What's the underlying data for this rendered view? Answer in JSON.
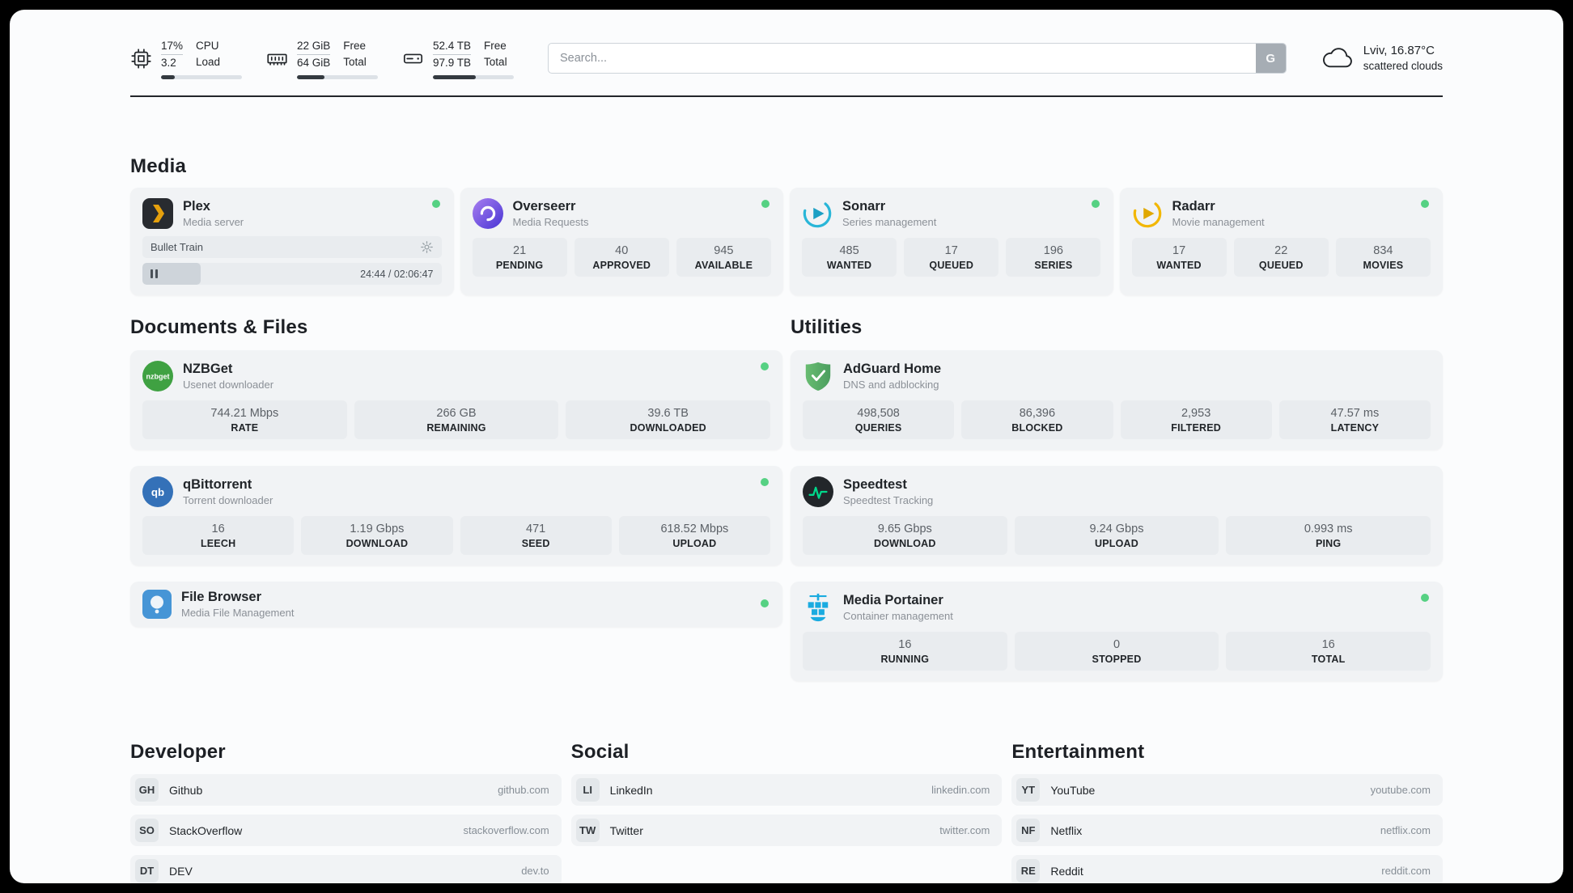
{
  "colors": {
    "status_online": "#56d183"
  },
  "header": {
    "cpu": {
      "value1": "17%",
      "value2": "3.2",
      "label1": "CPU",
      "label2": "Load",
      "percent": 17
    },
    "ram": {
      "value1": "22 GiB",
      "value2": "64 GiB",
      "label1": "Free",
      "label2": "Total",
      "percent": 34
    },
    "disk": {
      "value1": "52.4 TB",
      "value2": "97.9 TB",
      "label1": "Free",
      "label2": "Total",
      "percent": 53
    },
    "search": {
      "placeholder": "Search...",
      "engine_label": "G"
    },
    "weather": {
      "location": "Lviv, 16.87°C",
      "condition": "scattered clouds"
    }
  },
  "sections": {
    "media": {
      "title": "Media",
      "plex": {
        "name": "Plex",
        "subtitle": "Media server",
        "now_playing": "Bullet Train",
        "time": "24:44 / 02:06:47",
        "progress_percent": 19.5
      },
      "overseerr": {
        "name": "Overseerr",
        "subtitle": "Media Requests",
        "stats": [
          {
            "value": "21",
            "label": "PENDING"
          },
          {
            "value": "40",
            "label": "APPROVED"
          },
          {
            "value": "945",
            "label": "AVAILABLE"
          }
        ]
      },
      "sonarr": {
        "name": "Sonarr",
        "subtitle": "Series management",
        "stats": [
          {
            "value": "485",
            "label": "WANTED"
          },
          {
            "value": "17",
            "label": "QUEUED"
          },
          {
            "value": "196",
            "label": "SERIES"
          }
        ]
      },
      "radarr": {
        "name": "Radarr",
        "subtitle": "Movie management",
        "stats": [
          {
            "value": "17",
            "label": "WANTED"
          },
          {
            "value": "22",
            "label": "QUEUED"
          },
          {
            "value": "834",
            "label": "MOVIES"
          }
        ]
      }
    },
    "documents": {
      "title": "Documents & Files",
      "nzbget": {
        "name": "NZBGet",
        "subtitle": "Usenet downloader",
        "stats": [
          {
            "value": "744.21 Mbps",
            "label": "RATE"
          },
          {
            "value": "266 GB",
            "label": "REMAINING"
          },
          {
            "value": "39.6 TB",
            "label": "DOWNLOADED"
          }
        ]
      },
      "qbittorrent": {
        "name": "qBittorrent",
        "subtitle": "Torrent downloader",
        "stats": [
          {
            "value": "16",
            "label": "LEECH"
          },
          {
            "value": "1.19 Gbps",
            "label": "DOWNLOAD"
          },
          {
            "value": "471",
            "label": "SEED"
          },
          {
            "value": "618.52 Mbps",
            "label": "UPLOAD"
          }
        ]
      },
      "filebrowser": {
        "name": "File Browser",
        "subtitle": "Media File Management"
      }
    },
    "utilities": {
      "title": "Utilities",
      "adguard": {
        "name": "AdGuard Home",
        "subtitle": "DNS and adblocking",
        "stats": [
          {
            "value": "498,508",
            "label": "QUERIES"
          },
          {
            "value": "86,396",
            "label": "BLOCKED"
          },
          {
            "value": "2,953",
            "label": "FILTERED"
          },
          {
            "value": "47.57 ms",
            "label": "LATENCY"
          }
        ]
      },
      "speedtest": {
        "name": "Speedtest",
        "subtitle": "Speedtest Tracking",
        "stats": [
          {
            "value": "9.65 Gbps",
            "label": "DOWNLOAD"
          },
          {
            "value": "9.24 Gbps",
            "label": "UPLOAD"
          },
          {
            "value": "0.993 ms",
            "label": "PING"
          }
        ]
      },
      "portainer": {
        "name": "Media Portainer",
        "subtitle": "Container management",
        "stats": [
          {
            "value": "16",
            "label": "RUNNING"
          },
          {
            "value": "0",
            "label": "STOPPED"
          },
          {
            "value": "16",
            "label": "TOTAL"
          }
        ]
      }
    },
    "developer": {
      "title": "Developer",
      "links": [
        {
          "abbr": "GH",
          "name": "Github",
          "url": "github.com"
        },
        {
          "abbr": "SO",
          "name": "StackOverflow",
          "url": "stackoverflow.com"
        },
        {
          "abbr": "DT",
          "name": "DEV",
          "url": "dev.to"
        }
      ]
    },
    "social": {
      "title": "Social",
      "links": [
        {
          "abbr": "LI",
          "name": "LinkedIn",
          "url": "linkedin.com"
        },
        {
          "abbr": "TW",
          "name": "Twitter",
          "url": "twitter.com"
        }
      ]
    },
    "entertainment": {
      "title": "Entertainment",
      "links": [
        {
          "abbr": "YT",
          "name": "YouTube",
          "url": "youtube.com"
        },
        {
          "abbr": "NF",
          "name": "Netflix",
          "url": "netflix.com"
        },
        {
          "abbr": "RE",
          "name": "Reddit",
          "url": "reddit.com"
        }
      ]
    }
  }
}
